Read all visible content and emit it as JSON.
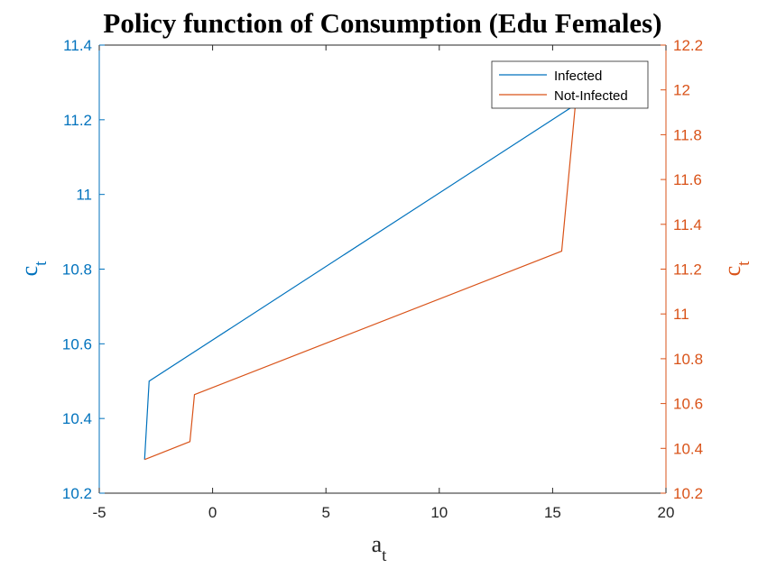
{
  "chart_data": {
    "type": "line",
    "title": "Policy function of Consumption (Edu Females)",
    "xlabel": "a",
    "xlabel_sub": "t",
    "ylabel_left": "c",
    "ylabel_left_sub": "t",
    "ylabel_right": "c",
    "ylabel_right_sub": "t",
    "xlim": [
      -5,
      20
    ],
    "x_ticks": [
      -5,
      0,
      5,
      10,
      15,
      20
    ],
    "x_tick_labels": [
      "-5",
      "0",
      "5",
      "10",
      "15",
      "20"
    ],
    "ylim_left": [
      10.2,
      11.4
    ],
    "y_left_ticks": [
      10.2,
      10.4,
      10.6,
      10.8,
      11.0,
      11.2,
      11.4
    ],
    "y_left_tick_labels": [
      "10.2",
      "10.4",
      "10.6",
      "10.8",
      "11",
      "11.2",
      "11.4"
    ],
    "ylim_right": [
      10.2,
      12.2
    ],
    "y_right_ticks": [
      10.2,
      10.4,
      10.6,
      10.8,
      11.0,
      11.2,
      11.4,
      11.6,
      11.8,
      12.0,
      12.2
    ],
    "y_right_tick_labels": [
      "10.2",
      "10.4",
      "10.6",
      "10.8",
      "11",
      "11.2",
      "11.4",
      "11.6",
      "11.8",
      "12",
      "12.2"
    ],
    "grid": false,
    "legend_position": "top-right",
    "series": [
      {
        "name": "Infected",
        "axis": "left",
        "color": "#0072BD",
        "x": [
          -3.0,
          -2.8,
          16.0
        ],
        "y": [
          10.29,
          10.5,
          11.24
        ]
      },
      {
        "name": "Not-Infected",
        "axis": "right",
        "color": "#D95319",
        "x": [
          -3.0,
          -1.0,
          -0.8,
          15.4,
          16.0
        ],
        "y": [
          10.35,
          10.43,
          10.64,
          11.28,
          11.93
        ]
      }
    ],
    "colors": {
      "left_axis": "#0072BD",
      "right_axis": "#D95319",
      "x_axis": "#262626"
    }
  }
}
